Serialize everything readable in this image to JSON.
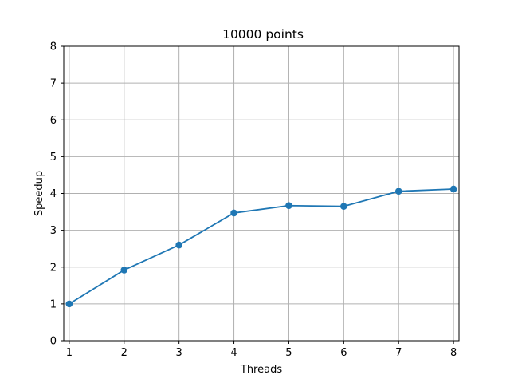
{
  "chart_data": {
    "type": "line",
    "title": "10000 points",
    "xlabel": "Threads",
    "ylabel": "Speedup",
    "x": [
      1,
      2,
      3,
      4,
      5,
      6,
      7,
      8
    ],
    "series": [
      {
        "values": [
          1.0,
          1.92,
          2.6,
          3.47,
          3.67,
          3.65,
          4.06,
          4.12
        ],
        "color": "#1f77b4",
        "marker": "circle"
      }
    ],
    "xticks": [
      "1",
      "2",
      "3",
      "4",
      "5",
      "6",
      "7",
      "8"
    ],
    "yticks": [
      "0",
      "1",
      "2",
      "3",
      "4",
      "5",
      "6",
      "7",
      "8"
    ],
    "xlim": [
      0.9,
      8.1
    ],
    "ylim": [
      0,
      8
    ],
    "grid": true,
    "legend": "none"
  }
}
